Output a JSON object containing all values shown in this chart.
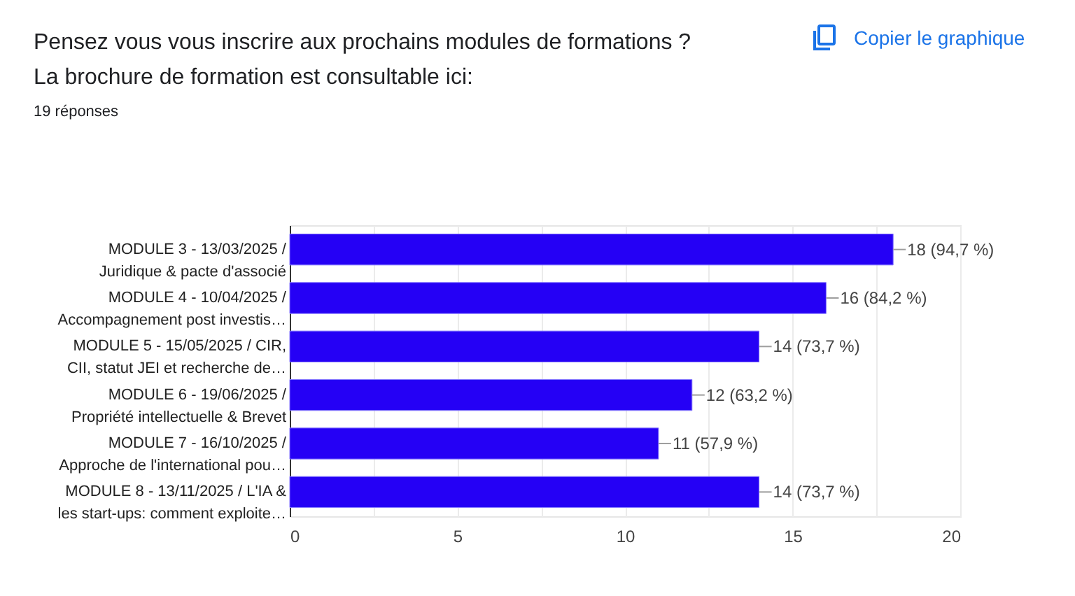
{
  "chart_data": {
    "type": "bar",
    "orientation": "horizontal",
    "title": "Pensez vous vous inscrire aux prochains modules de formations ?\nLa brochure de formation est consultable ici:",
    "subtitle": "19 réponses",
    "annotations": [
      "Copier le graphique"
    ],
    "categories": [
      "MODULE 3 - 13/03/2025 /\nJuridique & pacte d'associé",
      "MODULE 4 - 10/04/2025 /\nAccompagnement post investis…",
      "MODULE 5 - 15/05/2025 / CIR,\nCII, statut JEI et recherche de…",
      "MODULE 6 - 19/06/2025 /\nPropriété intellectuelle & Brevet",
      "MODULE 7 - 16/10/2025 /\nApproche de l'international pou…",
      "MODULE 8 - 13/11/2025 / L'IA &\nles start-ups: comment exploite…"
    ],
    "values": [
      18,
      16,
      14,
      12,
      11,
      14
    ],
    "value_labels": [
      "18 (94,7 %)",
      "16 (84,2 %)",
      "14 (73,7 %)",
      "12 (63,2 %)",
      "11 (57,9 %)",
      "14 (73,7 %)"
    ],
    "color": "#2500f5",
    "xlim": [
      0,
      20
    ],
    "xticks": [
      0,
      {
        "value": 2.5,
        "label": null
      },
      5,
      {
        "value": 7.5,
        "label": null
      },
      10,
      {
        "value": 12.5,
        "label": null
      },
      15,
      {
        "value": 17.5,
        "label": null
      },
      20
    ],
    "grid": "x"
  }
}
